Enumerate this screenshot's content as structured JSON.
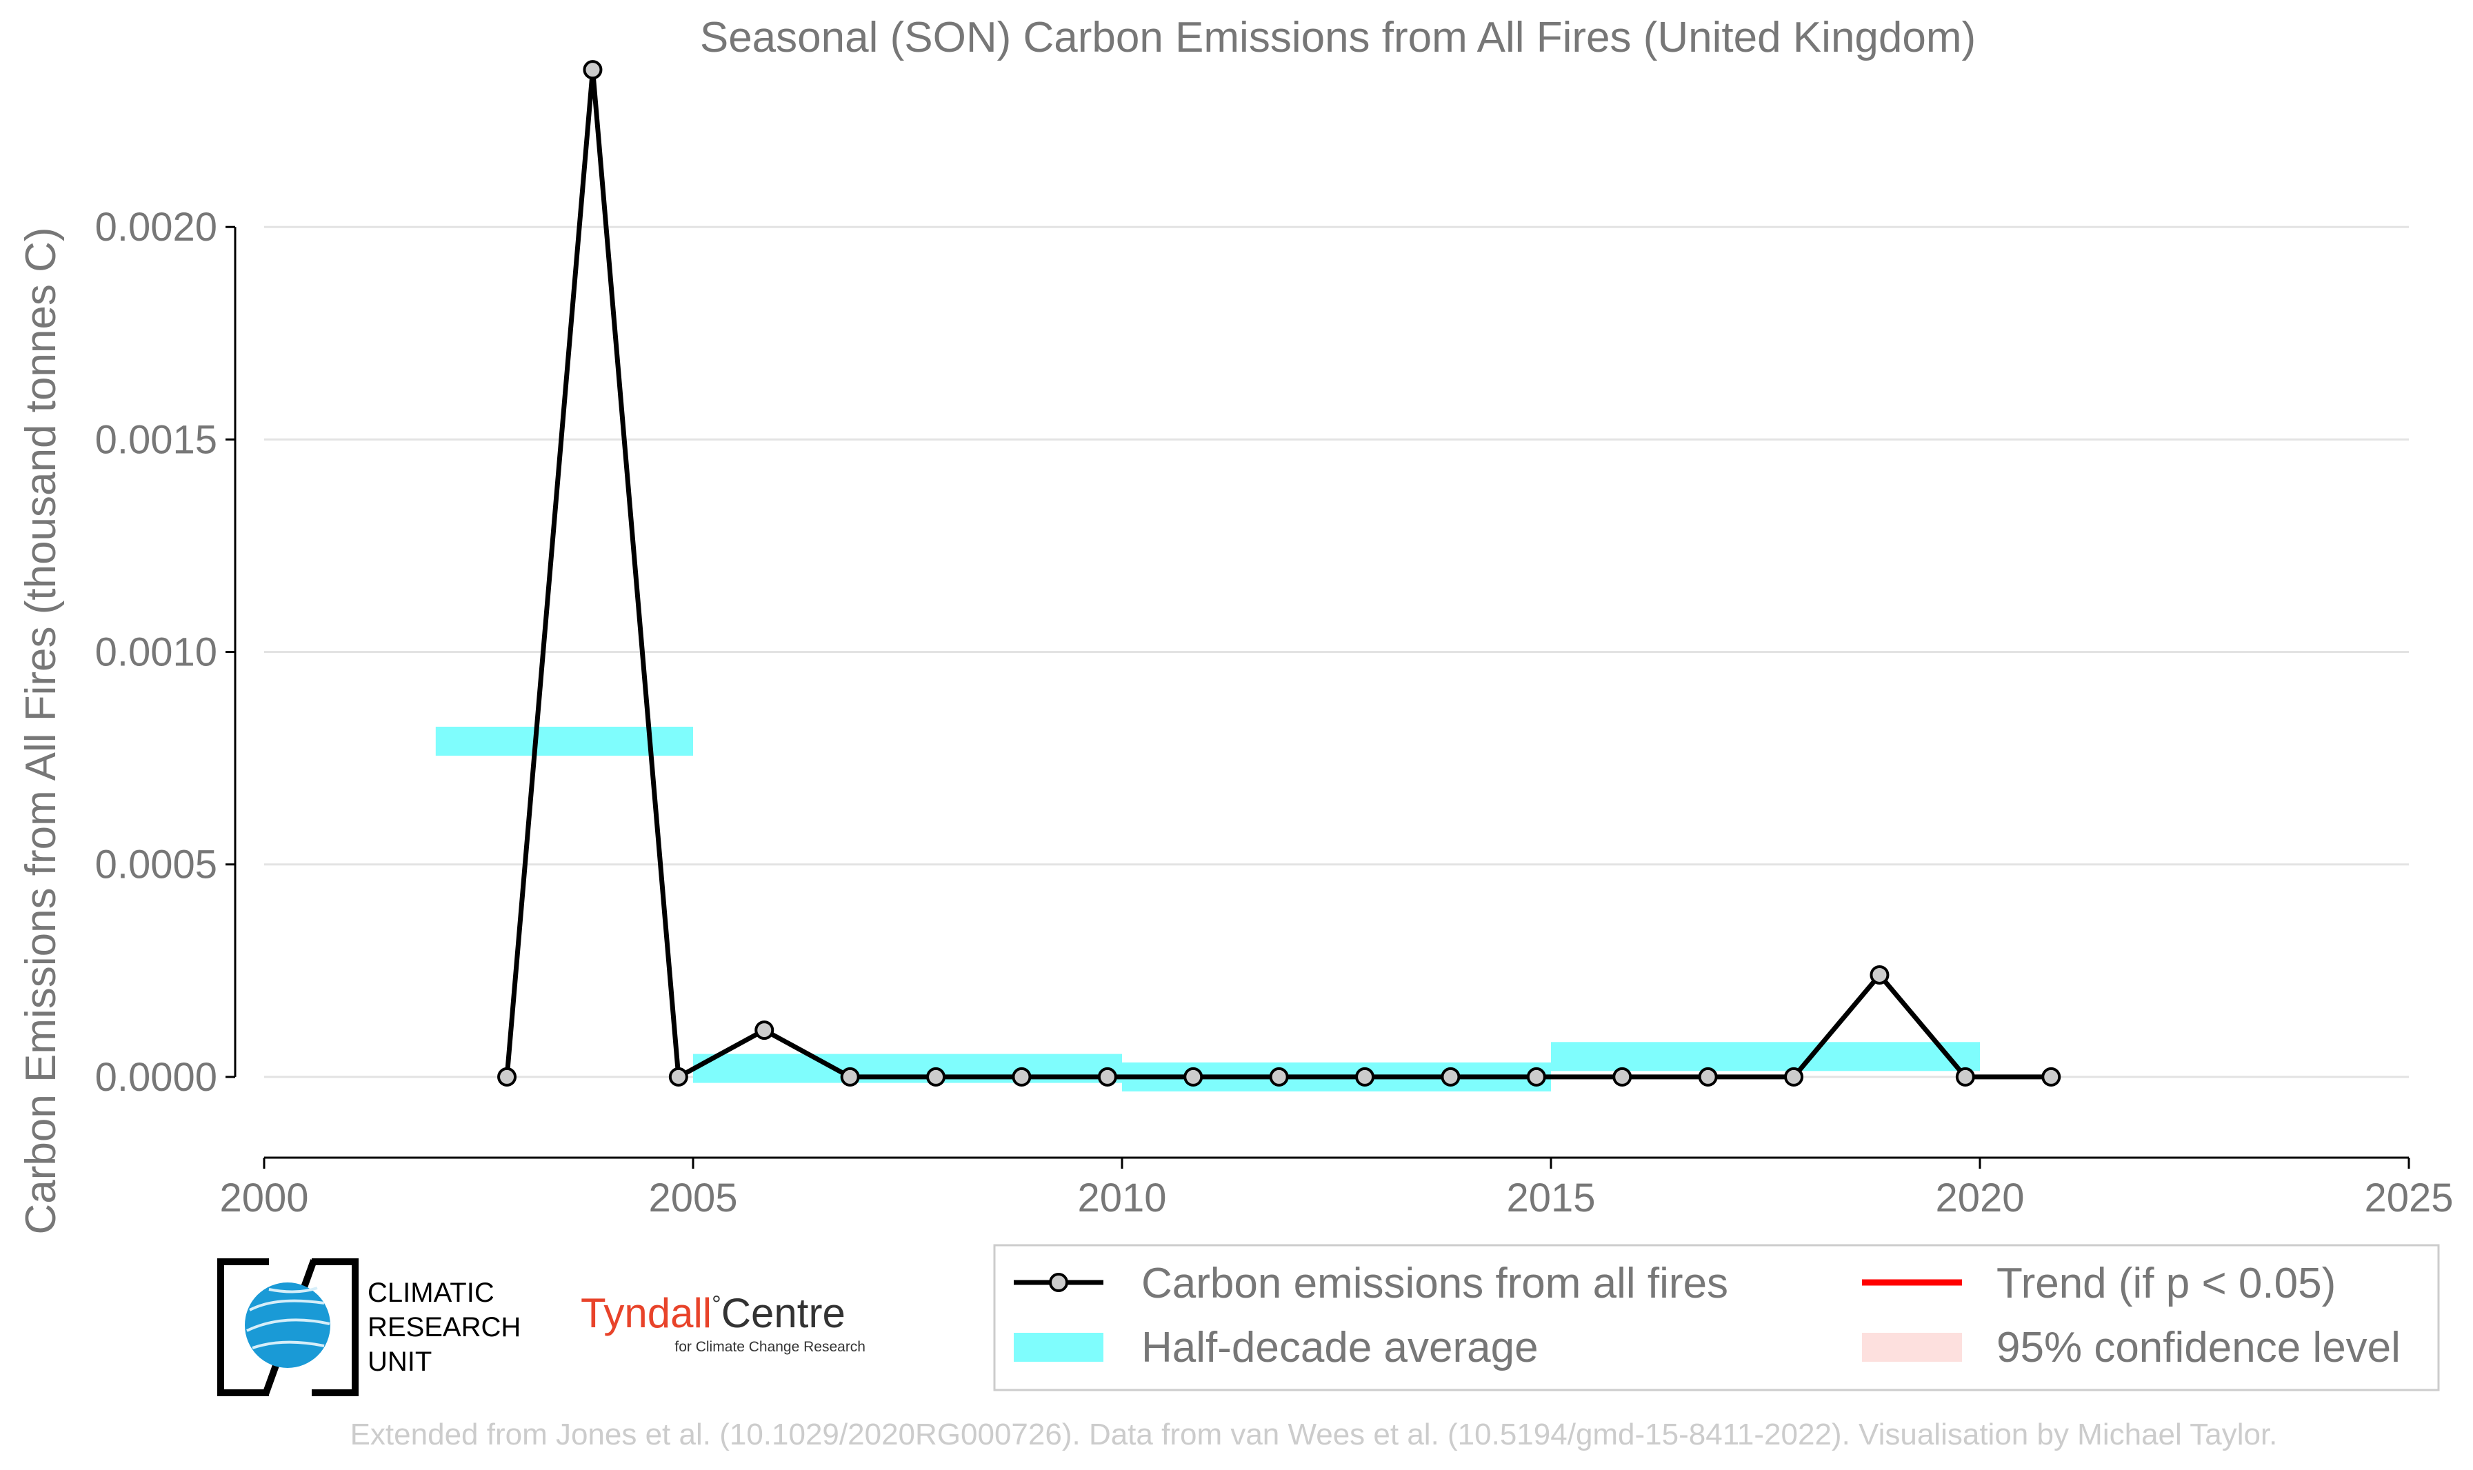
{
  "chart_data": {
    "type": "line",
    "title": "Seasonal (SON) Carbon Emissions from All Fires (United Kingdom)",
    "xlabel": "",
    "ylabel": "Carbon Emissions from All Fires (thousand tonnes C)",
    "xlim": [
      2000,
      2025
    ],
    "ylim": [
      -0.00019,
      0.00238
    ],
    "xticks": [
      2000,
      2005,
      2010,
      2015,
      2020,
      2025
    ],
    "xtick_labels": [
      "2000",
      "2005",
      "2010",
      "2015",
      "2020",
      "2025"
    ],
    "yticks": [
      0.0,
      0.0005,
      0.001,
      0.0015,
      0.002
    ],
    "ytick_labels": [
      "0.0000",
      "0.0005",
      "0.0010",
      "0.0015",
      "0.0020"
    ],
    "grid": "horizontal",
    "legend_position": "bottom-right, below plot",
    "series": [
      {
        "name": "Carbon emissions from all fires",
        "style": "line-with-markers",
        "color": "#000000",
        "marker_fill": "#cccccc",
        "x": [
          2002.83,
          2003.83,
          2004.83,
          2005.83,
          2006.83,
          2007.83,
          2008.83,
          2009.83,
          2010.83,
          2011.83,
          2012.83,
          2013.83,
          2014.83,
          2015.83,
          2016.83,
          2017.83,
          2018.83,
          2019.83,
          2020.83
        ],
        "y": [
          0.0,
          0.00237,
          0.0,
          0.00011,
          0.0,
          0.0,
          0.0,
          0.0,
          0.0,
          0.0,
          0.0,
          0.0,
          0.0,
          0.0,
          0.0,
          0.0,
          0.00024,
          0.0,
          0.0
        ]
      },
      {
        "name": "Half-decade average",
        "style": "band",
        "color": "#7ffdfd",
        "segments": [
          {
            "x0": 2002,
            "x1": 2005,
            "y": 0.00079
          },
          {
            "x0": 2005,
            "x1": 2010,
            "y": 2e-05
          },
          {
            "x0": 2010,
            "x1": 2015,
            "y": 0.0
          },
          {
            "x0": 2015,
            "x1": 2020,
            "y": 4.8e-05
          }
        ]
      }
    ],
    "legend": [
      {
        "label": "Carbon emissions from all fires",
        "kind": "line-marker",
        "color": "#000000"
      },
      {
        "label": "Trend (if p < 0.05)",
        "kind": "line",
        "color": "#ff0000"
      },
      {
        "label": "Half-decade average",
        "kind": "patch",
        "color": "#7ffdfd"
      },
      {
        "label": "95% confidence level",
        "kind": "patch",
        "color": "#fde0de"
      }
    ]
  },
  "logos": {
    "cru": [
      "CLIMATIC",
      "RESEARCH",
      "UNIT"
    ],
    "tyndall_main": "Tyndall",
    "tyndall_degree": "°",
    "tyndall_centre": "Centre",
    "tyndall_sub": "for Climate Change Research"
  },
  "footer": "Extended from Jones et al. (10.1029/2020RG000726). Data from van Wees et al. (10.5194/gmd-15-8411-2022). Visualisation by Michael Taylor."
}
